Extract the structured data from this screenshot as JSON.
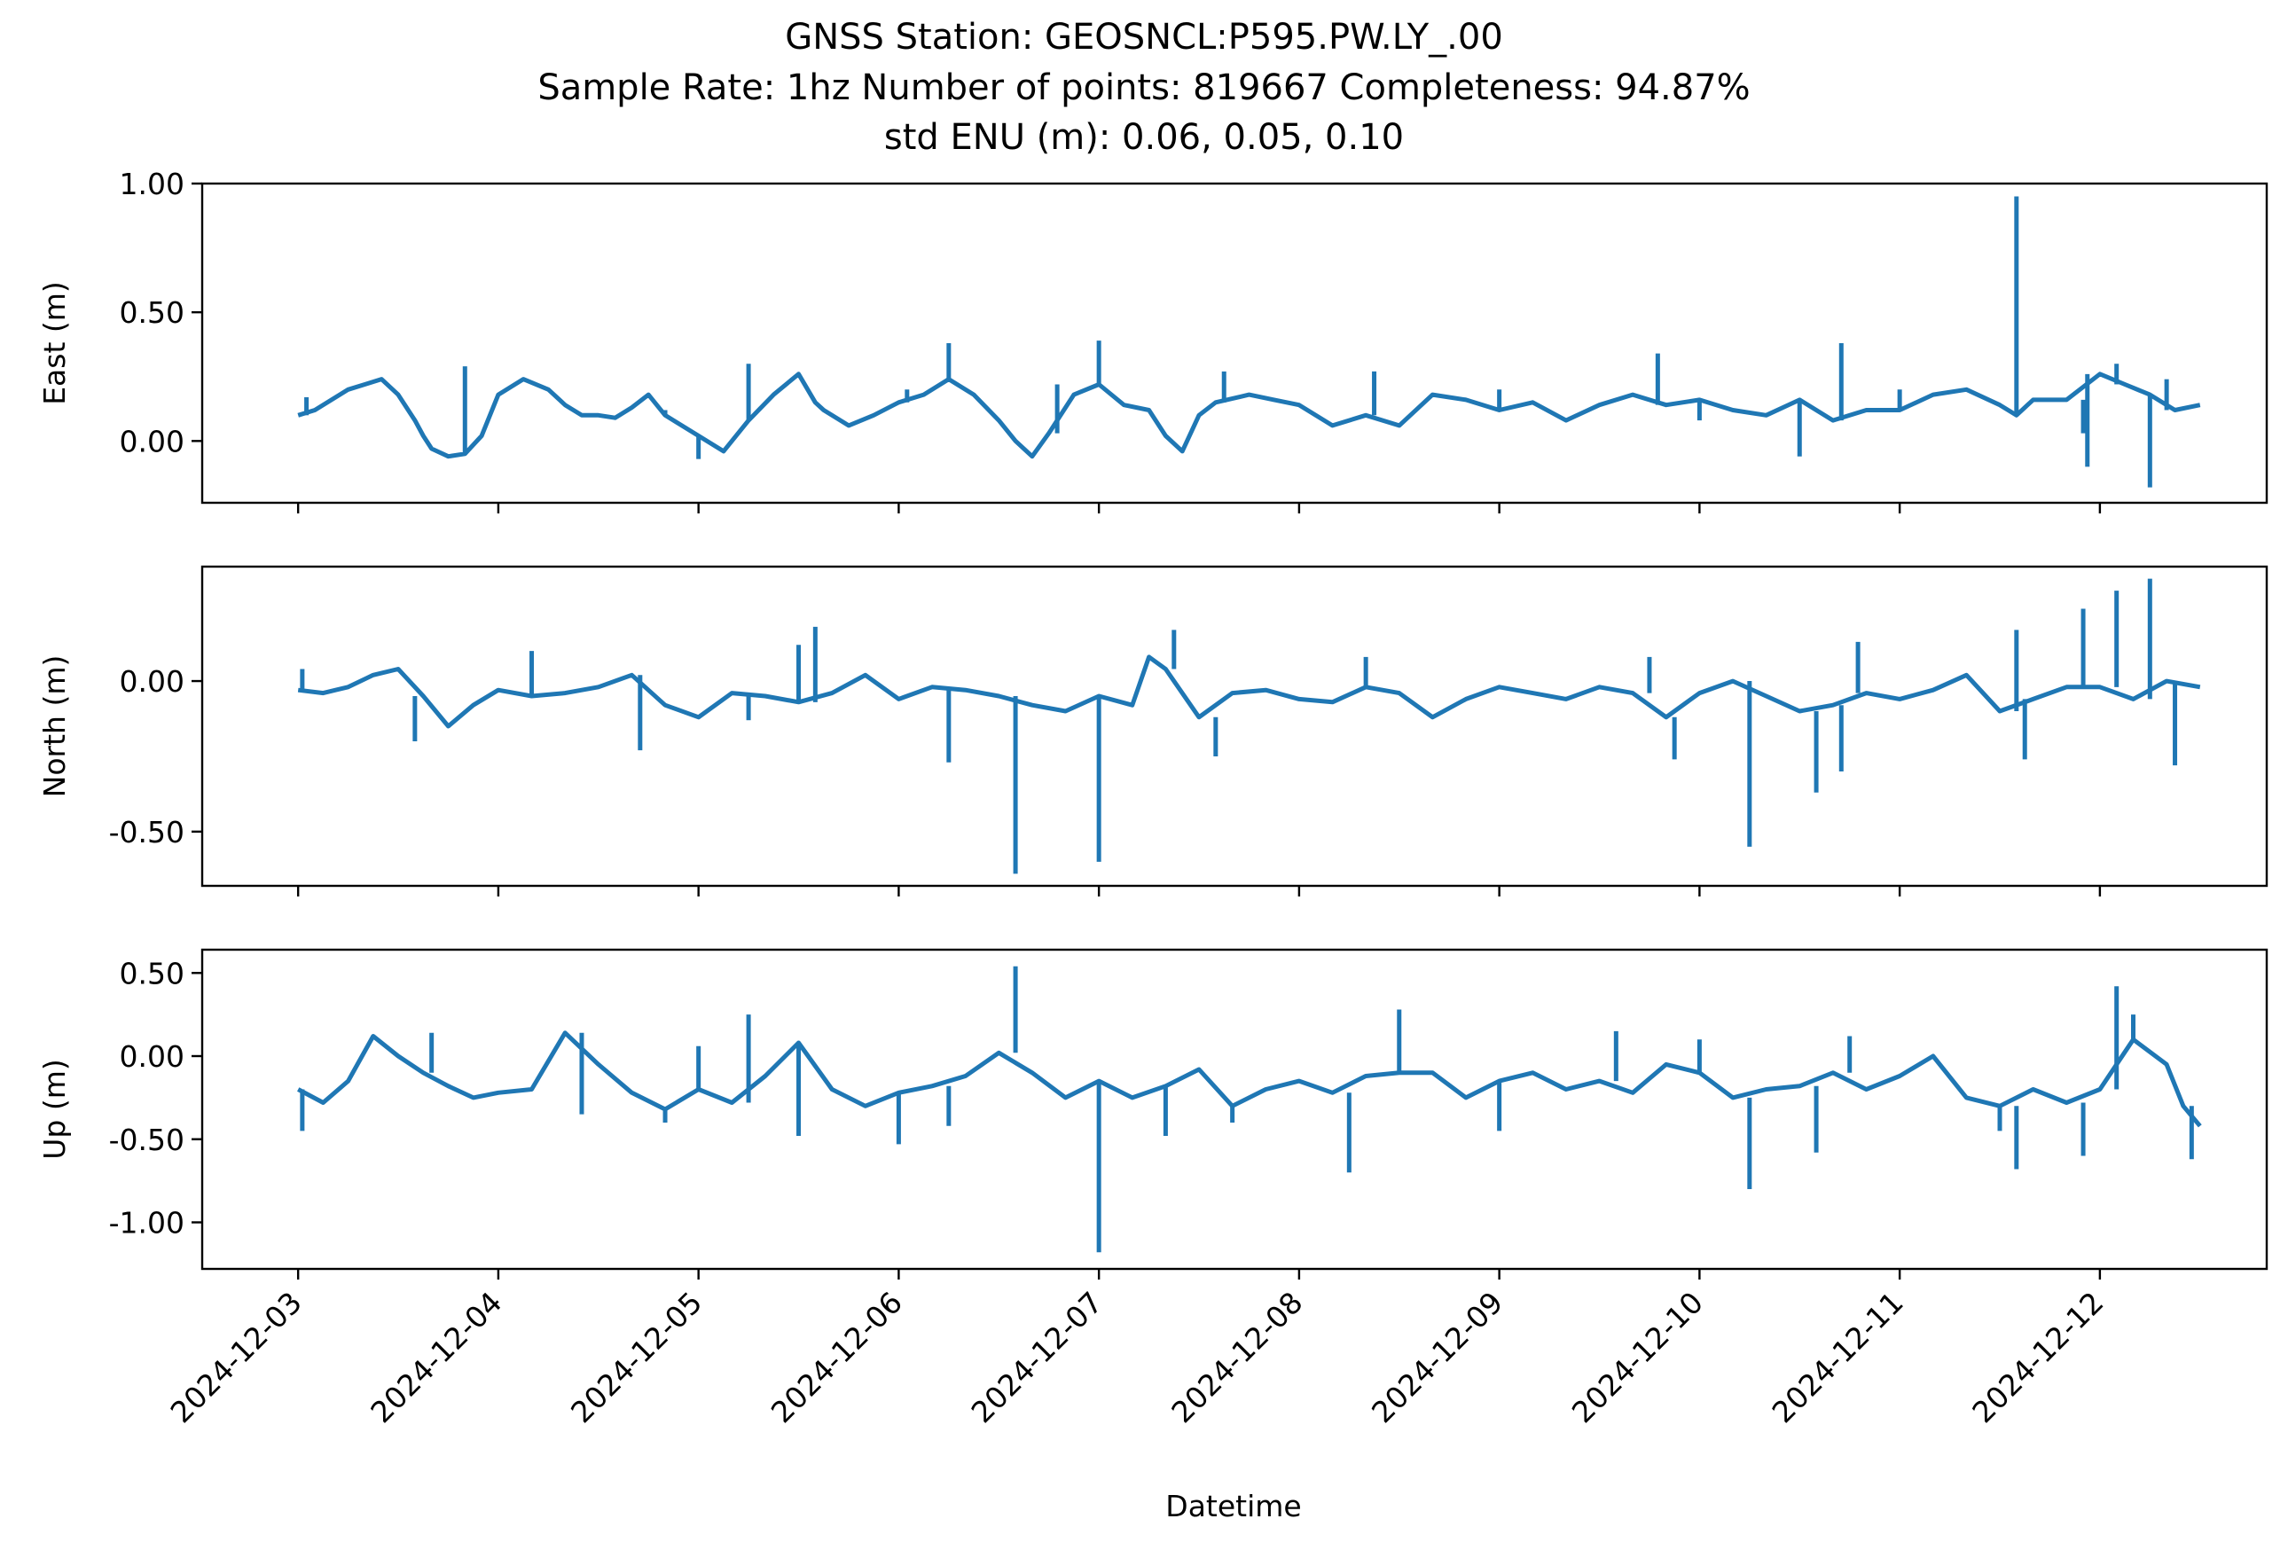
{
  "chart_data": {
    "type": "line",
    "title_lines": [
      "GNSS Station: GEOSNCL:P595.PW.LY_.00",
      "Sample Rate: 1hz   Number of points: 819667    Completeness:  94.87%",
      "std ENU (m):  0.06, 0.05, 0.10"
    ],
    "xlabel": "Datetime",
    "x_ticks": [
      "2024-12-03",
      "2024-12-04",
      "2024-12-05",
      "2024-12-06",
      "2024-12-07",
      "2024-12-08",
      "2024-12-09",
      "2024-12-10",
      "2024-12-11",
      "2024-12-12"
    ],
    "xlim": [
      "2024-12-02T12:30",
      "2024-12-12T20:00"
    ],
    "line_color": "#1f77b4",
    "subplots": [
      {
        "ylabel": "East (m)",
        "ylim": [
          -0.24,
          1.0
        ],
        "y_ticks": [
          "1.00",
          "0.50",
          "0.00"
        ],
        "y_tick_values": [
          1.0,
          0.5,
          0.0
        ],
        "series": {
          "x": [
            "2024-12-03T00:00",
            "2024-12-03T02:00",
            "2024-12-03T04:00",
            "2024-12-03T06:00",
            "2024-12-03T08:00",
            "2024-12-03T10:00",
            "2024-12-03T12:00",
            "2024-12-03T14:00",
            "2024-12-03T15:00",
            "2024-12-03T16:00",
            "2024-12-03T18:00",
            "2024-12-03T20:00",
            "2024-12-03T22:00",
            "2024-12-04T00:00",
            "2024-12-04T03:00",
            "2024-12-04T06:00",
            "2024-12-04T08:00",
            "2024-12-04T10:00",
            "2024-12-04T12:00",
            "2024-12-04T14:00",
            "2024-12-04T16:00",
            "2024-12-04T18:00",
            "2024-12-04T20:00",
            "2024-12-05T00:00",
            "2024-12-05T03:00",
            "2024-12-05T06:00",
            "2024-12-05T09:00",
            "2024-12-05T12:00",
            "2024-12-05T14:00",
            "2024-12-05T15:00",
            "2024-12-05T18:00",
            "2024-12-05T21:00",
            "2024-12-06T00:00",
            "2024-12-06T03:00",
            "2024-12-06T06:00",
            "2024-12-06T09:00",
            "2024-12-06T12:00",
            "2024-12-06T14:00",
            "2024-12-06T16:00",
            "2024-12-06T18:00",
            "2024-12-06T21:00",
            "2024-12-07T00:00",
            "2024-12-07T03:00",
            "2024-12-07T06:00",
            "2024-12-07T08:00",
            "2024-12-07T10:00",
            "2024-12-07T12:00",
            "2024-12-07T14:00",
            "2024-12-07T18:00",
            "2024-12-07T21:00",
            "2024-12-08T00:00",
            "2024-12-08T04:00",
            "2024-12-08T08:00",
            "2024-12-08T12:00",
            "2024-12-08T16:00",
            "2024-12-08T20:00",
            "2024-12-09T00:00",
            "2024-12-09T04:00",
            "2024-12-09T08:00",
            "2024-12-09T12:00",
            "2024-12-09T16:00",
            "2024-12-09T20:00",
            "2024-12-10T00:00",
            "2024-12-10T04:00",
            "2024-12-10T08:00",
            "2024-12-10T12:00",
            "2024-12-10T16:00",
            "2024-12-10T20:00",
            "2024-12-11T00:00",
            "2024-12-11T04:00",
            "2024-12-11T08:00",
            "2024-12-11T12:00",
            "2024-12-11T14:00",
            "2024-12-11T16:00",
            "2024-12-11T20:00",
            "2024-12-12T00:00",
            "2024-12-12T03:00",
            "2024-12-12T06:00",
            "2024-12-12T09:00",
            "2024-12-12T12:00"
          ],
          "y": [
            0.1,
            0.12,
            0.16,
            0.2,
            0.22,
            0.24,
            0.18,
            0.08,
            0.02,
            -0.03,
            -0.06,
            -0.05,
            0.02,
            0.18,
            0.24,
            0.2,
            0.14,
            0.1,
            0.1,
            0.09,
            0.13,
            0.18,
            0.1,
            0.02,
            -0.04,
            0.08,
            0.18,
            0.26,
            0.15,
            0.12,
            0.06,
            0.1,
            0.15,
            0.18,
            0.24,
            0.18,
            0.08,
            0.0,
            -0.06,
            0.03,
            0.18,
            0.22,
            0.14,
            0.12,
            0.02,
            -0.04,
            0.1,
            0.15,
            0.18,
            0.16,
            0.14,
            0.06,
            0.1,
            0.06,
            0.18,
            0.16,
            0.12,
            0.15,
            0.08,
            0.14,
            0.18,
            0.14,
            0.16,
            0.12,
            0.1,
            0.16,
            0.08,
            0.12,
            0.12,
            0.18,
            0.2,
            0.14,
            0.1,
            0.16,
            0.16,
            0.26,
            0.22,
            0.18,
            0.12,
            0.14
          ]
        },
        "spikes": [
          {
            "x": "2024-12-03T01:00",
            "y": 0.17
          },
          {
            "x": "2024-12-03T20:00",
            "y": 0.29
          },
          {
            "x": "2024-12-04T20:00",
            "y": 0.12
          },
          {
            "x": "2024-12-05T00:00",
            "y": -0.07
          },
          {
            "x": "2024-12-05T06:00",
            "y": 0.3
          },
          {
            "x": "2024-12-06T01:00",
            "y": 0.2
          },
          {
            "x": "2024-12-06T06:00",
            "y": 0.38
          },
          {
            "x": "2024-12-06T19:00",
            "y": 0.22
          },
          {
            "x": "2024-12-07T00:00",
            "y": 0.39
          },
          {
            "x": "2024-12-07T15:00",
            "y": 0.27
          },
          {
            "x": "2024-12-08T09:00",
            "y": 0.27
          },
          {
            "x": "2024-12-09T00:00",
            "y": 0.2
          },
          {
            "x": "2024-12-09T19:00",
            "y": 0.34
          },
          {
            "x": "2024-12-10T00:00",
            "y": 0.08
          },
          {
            "x": "2024-12-10T17:00",
            "y": 0.38
          },
          {
            "x": "2024-12-10T12:00",
            "y": -0.06
          },
          {
            "x": "2024-12-11T00:00",
            "y": 0.2
          },
          {
            "x": "2024-12-11T14:00",
            "y": 0.95
          },
          {
            "x": "2024-12-11T22:00",
            "y": 0.03
          },
          {
            "x": "2024-12-11T22:30",
            "y": -0.1
          },
          {
            "x": "2024-12-12T02:00",
            "y": 0.3
          },
          {
            "x": "2024-12-12T06:00",
            "y": -0.18
          },
          {
            "x": "2024-12-12T08:00",
            "y": 0.24
          }
        ]
      },
      {
        "ylabel": "North (m)",
        "ylim": [
          -0.68,
          0.38
        ],
        "y_ticks": [
          "0.00",
          "-0.50"
        ],
        "y_tick_values": [
          0.0,
          -0.5
        ],
        "series": {
          "x": [
            "2024-12-03T00:00",
            "2024-12-03T03:00",
            "2024-12-03T06:00",
            "2024-12-03T09:00",
            "2024-12-03T12:00",
            "2024-12-03T15:00",
            "2024-12-03T18:00",
            "2024-12-03T21:00",
            "2024-12-04T00:00",
            "2024-12-04T04:00",
            "2024-12-04T08:00",
            "2024-12-04T12:00",
            "2024-12-04T16:00",
            "2024-12-04T20:00",
            "2024-12-05T00:00",
            "2024-12-05T04:00",
            "2024-12-05T08:00",
            "2024-12-05T12:00",
            "2024-12-05T16:00",
            "2024-12-05T20:00",
            "2024-12-06T00:00",
            "2024-12-06T04:00",
            "2024-12-06T08:00",
            "2024-12-06T12:00",
            "2024-12-06T16:00",
            "2024-12-06T20:00",
            "2024-12-07T00:00",
            "2024-12-07T04:00",
            "2024-12-07T06:00",
            "2024-12-07T08:00",
            "2024-12-07T12:00",
            "2024-12-07T16:00",
            "2024-12-07T20:00",
            "2024-12-08T00:00",
            "2024-12-08T04:00",
            "2024-12-08T08:00",
            "2024-12-08T12:00",
            "2024-12-08T16:00",
            "2024-12-08T20:00",
            "2024-12-09T00:00",
            "2024-12-09T04:00",
            "2024-12-09T08:00",
            "2024-12-09T12:00",
            "2024-12-09T16:00",
            "2024-12-09T20:00",
            "2024-12-10T00:00",
            "2024-12-10T04:00",
            "2024-12-10T08:00",
            "2024-12-10T12:00",
            "2024-12-10T16:00",
            "2024-12-10T20:00",
            "2024-12-11T00:00",
            "2024-12-11T04:00",
            "2024-12-11T08:00",
            "2024-12-11T12:00",
            "2024-12-11T16:00",
            "2024-12-11T20:00",
            "2024-12-12T00:00",
            "2024-12-12T04:00",
            "2024-12-12T08:00",
            "2024-12-12T12:00"
          ],
          "y": [
            -0.03,
            -0.04,
            -0.02,
            0.02,
            0.04,
            -0.05,
            -0.15,
            -0.08,
            -0.03,
            -0.05,
            -0.04,
            -0.02,
            0.02,
            -0.08,
            -0.12,
            -0.04,
            -0.05,
            -0.07,
            -0.04,
            0.02,
            -0.06,
            -0.02,
            -0.03,
            -0.05,
            -0.08,
            -0.1,
            -0.05,
            -0.08,
            0.08,
            0.04,
            -0.12,
            -0.04,
            -0.03,
            -0.06,
            -0.07,
            -0.02,
            -0.04,
            -0.12,
            -0.06,
            -0.02,
            -0.04,
            -0.06,
            -0.02,
            -0.04,
            -0.12,
            -0.04,
            0.0,
            -0.05,
            -0.1,
            -0.08,
            -0.04,
            -0.06,
            -0.03,
            0.02,
            -0.1,
            -0.06,
            -0.02,
            -0.02,
            -0.06,
            0.0,
            -0.02
          ]
        },
        "spikes": [
          {
            "x": "2024-12-03T00:30",
            "y": 0.04
          },
          {
            "x": "2024-12-03T14:00",
            "y": -0.2
          },
          {
            "x": "2024-12-04T04:00",
            "y": 0.1
          },
          {
            "x": "2024-12-04T17:00",
            "y": -0.23
          },
          {
            "x": "2024-12-05T06:00",
            "y": -0.13
          },
          {
            "x": "2024-12-05T12:00",
            "y": 0.12
          },
          {
            "x": "2024-12-05T14:00",
            "y": 0.18
          },
          {
            "x": "2024-12-06T06:00",
            "y": -0.27
          },
          {
            "x": "2024-12-06T14:00",
            "y": -0.64
          },
          {
            "x": "2024-12-07T00:00",
            "y": -0.6
          },
          {
            "x": "2024-12-07T09:00",
            "y": 0.17
          },
          {
            "x": "2024-12-07T14:00",
            "y": -0.25
          },
          {
            "x": "2024-12-08T08:00",
            "y": 0.08
          },
          {
            "x": "2024-12-09T18:00",
            "y": 0.08
          },
          {
            "x": "2024-12-09T21:00",
            "y": -0.26
          },
          {
            "x": "2024-12-10T06:00",
            "y": -0.55
          },
          {
            "x": "2024-12-10T14:00",
            "y": -0.37
          },
          {
            "x": "2024-12-10T19:00",
            "y": 0.13
          },
          {
            "x": "2024-12-10T17:00",
            "y": -0.3
          },
          {
            "x": "2024-12-11T14:00",
            "y": 0.17
          },
          {
            "x": "2024-12-11T15:00",
            "y": -0.26
          },
          {
            "x": "2024-12-11T22:00",
            "y": 0.24
          },
          {
            "x": "2024-12-12T02:00",
            "y": 0.3
          },
          {
            "x": "2024-12-12T06:00",
            "y": 0.34
          },
          {
            "x": "2024-12-12T09:00",
            "y": -0.28
          }
        ]
      },
      {
        "ylabel": "Up (m)",
        "ylim": [
          -1.28,
          0.64
        ],
        "y_ticks": [
          "0.50",
          "0.00",
          "-0.50",
          "-1.00"
        ],
        "y_tick_values": [
          0.5,
          0.0,
          -0.5,
          -1.0
        ],
        "series": {
          "x": [
            "2024-12-03T00:00",
            "2024-12-03T03:00",
            "2024-12-03T06:00",
            "2024-12-03T09:00",
            "2024-12-03T12:00",
            "2024-12-03T15:00",
            "2024-12-03T18:00",
            "2024-12-03T21:00",
            "2024-12-04T00:00",
            "2024-12-04T04:00",
            "2024-12-04T08:00",
            "2024-12-04T12:00",
            "2024-12-04T16:00",
            "2024-12-04T20:00",
            "2024-12-05T00:00",
            "2024-12-05T04:00",
            "2024-12-05T08:00",
            "2024-12-05T12:00",
            "2024-12-05T16:00",
            "2024-12-05T20:00",
            "2024-12-06T00:00",
            "2024-12-06T04:00",
            "2024-12-06T08:00",
            "2024-12-06T12:00",
            "2024-12-06T16:00",
            "2024-12-06T20:00",
            "2024-12-07T00:00",
            "2024-12-07T04:00",
            "2024-12-07T08:00",
            "2024-12-07T12:00",
            "2024-12-07T16:00",
            "2024-12-07T20:00",
            "2024-12-08T00:00",
            "2024-12-08T04:00",
            "2024-12-08T08:00",
            "2024-12-08T12:00",
            "2024-12-08T16:00",
            "2024-12-08T20:00",
            "2024-12-09T00:00",
            "2024-12-09T04:00",
            "2024-12-09T08:00",
            "2024-12-09T12:00",
            "2024-12-09T16:00",
            "2024-12-09T20:00",
            "2024-12-10T00:00",
            "2024-12-10T04:00",
            "2024-12-10T08:00",
            "2024-12-10T12:00",
            "2024-12-10T16:00",
            "2024-12-10T20:00",
            "2024-12-11T00:00",
            "2024-12-11T04:00",
            "2024-12-11T08:00",
            "2024-12-11T12:00",
            "2024-12-11T16:00",
            "2024-12-11T20:00",
            "2024-12-12T00:00",
            "2024-12-12T04:00",
            "2024-12-12T08:00",
            "2024-12-12T10:00",
            "2024-12-12T12:00"
          ],
          "y": [
            -0.2,
            -0.28,
            -0.15,
            0.12,
            0.0,
            -0.1,
            -0.18,
            -0.25,
            -0.22,
            -0.2,
            0.14,
            -0.05,
            -0.22,
            -0.32,
            -0.2,
            -0.28,
            -0.12,
            0.08,
            -0.2,
            -0.3,
            -0.22,
            -0.18,
            -0.12,
            0.02,
            -0.1,
            -0.25,
            -0.15,
            -0.25,
            -0.18,
            -0.08,
            -0.3,
            -0.2,
            -0.15,
            -0.22,
            -0.12,
            -0.1,
            -0.1,
            -0.25,
            -0.15,
            -0.1,
            -0.2,
            -0.15,
            -0.22,
            -0.05,
            -0.1,
            -0.25,
            -0.2,
            -0.18,
            -0.1,
            -0.2,
            -0.12,
            0.0,
            -0.25,
            -0.3,
            -0.2,
            -0.28,
            -0.2,
            0.1,
            -0.05,
            -0.3,
            -0.42
          ]
        },
        "spikes": [
          {
            "x": "2024-12-03T00:30",
            "y": -0.45
          },
          {
            "x": "2024-12-03T16:00",
            "y": 0.14
          },
          {
            "x": "2024-12-04T10:00",
            "y": -0.35
          },
          {
            "x": "2024-12-04T20:00",
            "y": -0.4
          },
          {
            "x": "2024-12-05T00:00",
            "y": 0.06
          },
          {
            "x": "2024-12-05T06:00",
            "y": 0.25
          },
          {
            "x": "2024-12-05T12:00",
            "y": -0.48
          },
          {
            "x": "2024-12-06T00:00",
            "y": -0.53
          },
          {
            "x": "2024-12-06T06:00",
            "y": -0.42
          },
          {
            "x": "2024-12-06T14:00",
            "y": 0.54
          },
          {
            "x": "2024-12-07T00:00",
            "y": -1.18
          },
          {
            "x": "2024-12-07T08:00",
            "y": -0.48
          },
          {
            "x": "2024-12-07T16:00",
            "y": -0.4
          },
          {
            "x": "2024-12-08T06:00",
            "y": -0.7
          },
          {
            "x": "2024-12-08T12:00",
            "y": 0.28
          },
          {
            "x": "2024-12-09T00:00",
            "y": -0.45
          },
          {
            "x": "2024-12-09T14:00",
            "y": 0.15
          },
          {
            "x": "2024-12-10T00:00",
            "y": 0.1
          },
          {
            "x": "2024-12-10T06:00",
            "y": -0.8
          },
          {
            "x": "2024-12-10T14:00",
            "y": -0.58
          },
          {
            "x": "2024-12-10T18:00",
            "y": 0.12
          },
          {
            "x": "2024-12-11T12:00",
            "y": -0.45
          },
          {
            "x": "2024-12-11T14:00",
            "y": -0.68
          },
          {
            "x": "2024-12-11T22:00",
            "y": -0.6
          },
          {
            "x": "2024-12-12T02:00",
            "y": 0.42
          },
          {
            "x": "2024-12-12T04:00",
            "y": 0.25
          },
          {
            "x": "2024-12-12T11:00",
            "y": -0.62
          }
        ]
      }
    ]
  }
}
